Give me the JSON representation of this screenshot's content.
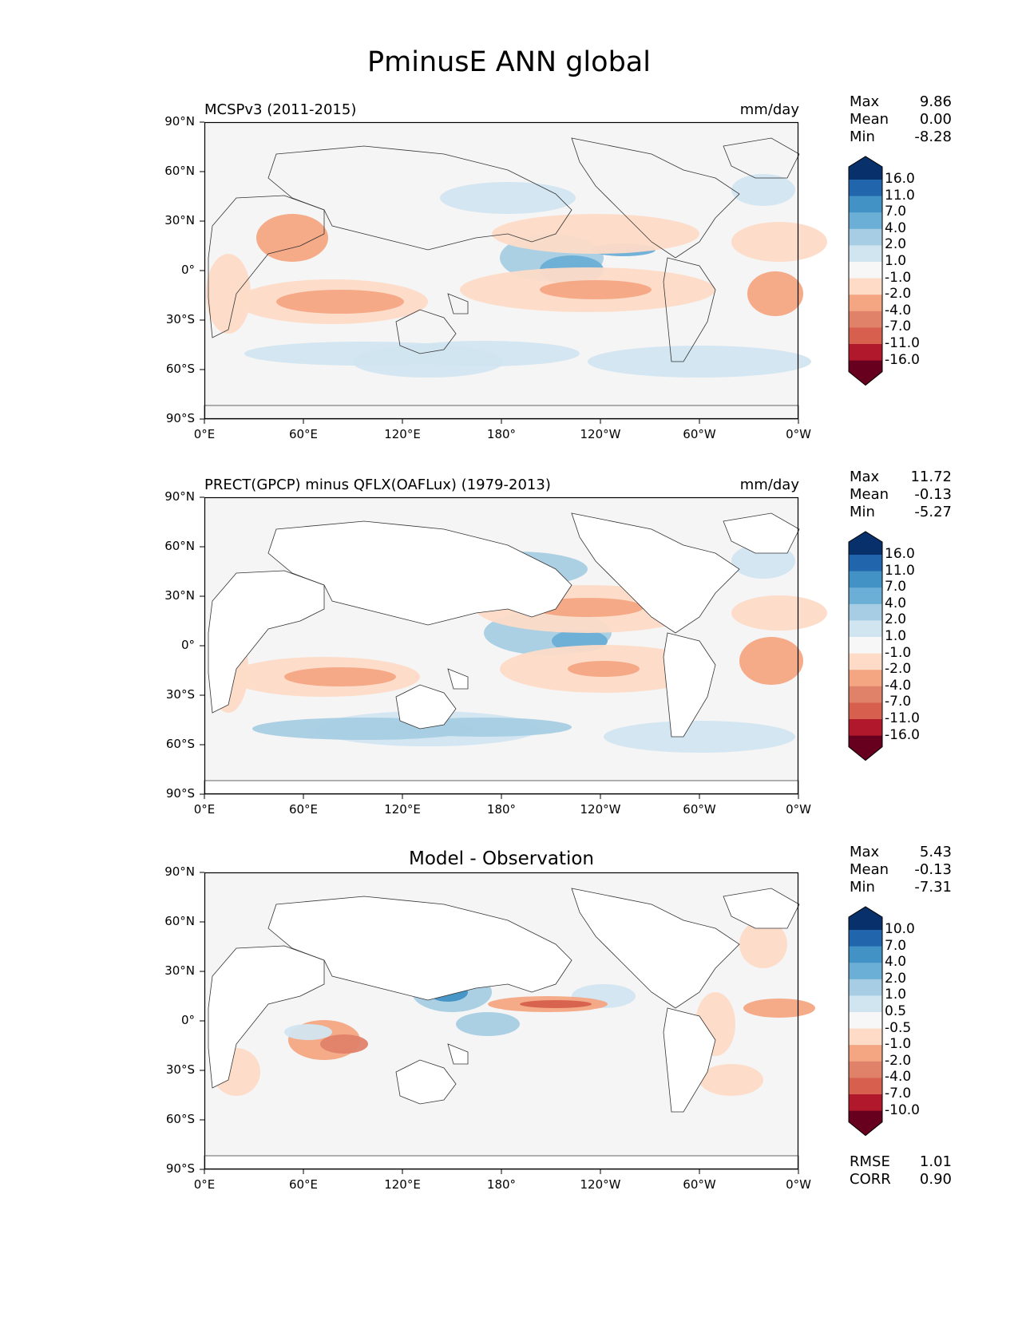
{
  "title": "PminusE ANN global",
  "lat_ticks": [
    "90°N",
    "60°N",
    "30°N",
    "0°",
    "30°S",
    "60°S",
    "90°S"
  ],
  "lon_ticks": [
    "0°E",
    "60°E",
    "120°E",
    "180°",
    "120°W",
    "60°W",
    "0°W"
  ],
  "stat_labels": {
    "max": "Max",
    "mean": "Mean",
    "min": "Min",
    "rmse": "RMSE",
    "corr": "CORR"
  },
  "colors": {
    "ocean_neutral": "#f5f5f5",
    "land": "#ffffff",
    "wet_scale": [
      "#d1e5f0",
      "#a6cde3",
      "#6baed6",
      "#4292c6",
      "#2166ac",
      "#08306b"
    ],
    "dry_scale": [
      "#fddbc7",
      "#f4a582",
      "#e0826a",
      "#d6604d",
      "#b2182b",
      "#67001f"
    ]
  },
  "panels": [
    {
      "id": "test",
      "title_left": "MCSPv3 (2011-2015)",
      "title_right": "mm/day",
      "stats": {
        "max": "9.86",
        "mean": "0.00",
        "min": "-8.28"
      },
      "colorbar_levels": [
        "16.0",
        "11.0",
        "7.0",
        "4.0",
        "2.0",
        "1.0",
        "-1.0",
        "-2.0",
        "-4.0",
        "-7.0",
        "-11.0",
        "-16.0"
      ]
    },
    {
      "id": "reference",
      "title_left": "PRECT(GPCP) minus QFLX(OAFLux) (1979-2013)",
      "title_right": "mm/day",
      "stats": {
        "max": "11.72",
        "mean": "-0.13",
        "min": "-5.27"
      },
      "colorbar_levels": [
        "16.0",
        "11.0",
        "7.0",
        "4.0",
        "2.0",
        "1.0",
        "-1.0",
        "-2.0",
        "-4.0",
        "-7.0",
        "-11.0",
        "-16.0"
      ]
    },
    {
      "id": "diff",
      "title_center": "Model - Observation",
      "stats": {
        "max": "5.43",
        "mean": "-0.13",
        "min": "-7.31"
      },
      "colorbar_levels": [
        "10.0",
        "7.0",
        "4.0",
        "2.0",
        "1.0",
        "0.5",
        "-0.5",
        "-1.0",
        "-2.0",
        "-4.0",
        "-7.0",
        "-10.0"
      ],
      "metrics": {
        "rmse": "1.01",
        "corr": "0.90"
      }
    }
  ]
}
